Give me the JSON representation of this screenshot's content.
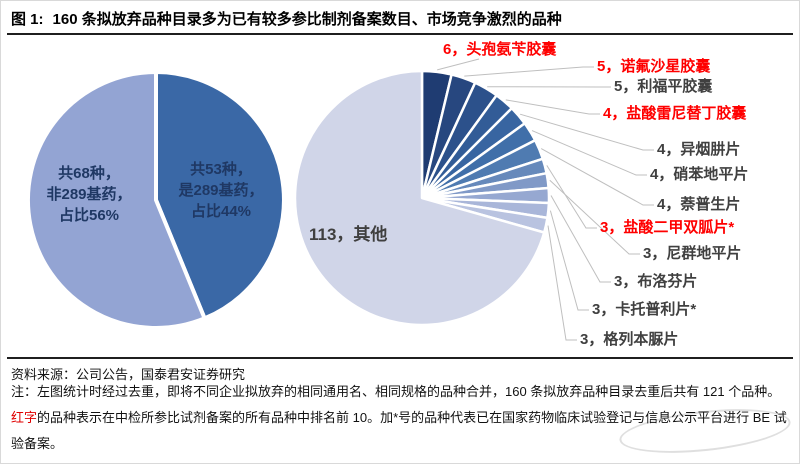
{
  "header": {
    "figure_label": "图 1:",
    "title": "160 条拟放弃品种目录多为已有较多参比制剂备案数目、市场竞争激烈的品种"
  },
  "footer": {
    "source": "资料来源：公司公告，国泰君安证券研究",
    "note_part1": "注：左图统计时经过去重，即将不同企业拟放弃的相同通用名、相同规格的品种合并，160 条拟放弃品种目录去重后共有 121 个品种。",
    "note_red": "红字",
    "note_part2": "的品种表示在中检所参比试剂备案的所有品种中排名前 10。加*号的品种代表已在国家药物临床试验登记与信息公示平台进行 BE 试验备案。"
  },
  "palette": {
    "red_label": "#ff0000",
    "normal_label": "#404040",
    "leader_line": "#bfbfbf",
    "pie_label_navy": "#1f3864",
    "divider": "#1f1f1f"
  },
  "chart_data": [
    {
      "type": "pie",
      "position": "left",
      "total": 121,
      "slices": [
        {
          "value": 53,
          "label": "共53种，\n是289基药，\n占比44%",
          "color": "#3a68a6"
        },
        {
          "value": 68,
          "label": "共68种，\n非289基药，\n占比56%",
          "color": "#93a4d3"
        }
      ]
    },
    {
      "type": "pie",
      "position": "right",
      "total": 160,
      "slices": [
        {
          "value": 6,
          "name": "头孢氨苄胶囊",
          "display": "6，头孢氨苄胶囊",
          "red": true,
          "color": "#1f3c72"
        },
        {
          "value": 5,
          "name": "诺氟沙星胶囊",
          "display": "5，诺氟沙星胶囊",
          "red": true,
          "color": "#27477f"
        },
        {
          "value": 5,
          "name": "利福平胶囊",
          "display": "5，利福平胶囊",
          "red": false,
          "color": "#2c518b"
        },
        {
          "value": 4,
          "name": "盐酸雷尼替丁胶囊",
          "display": "4，盐酸雷尼替丁胶囊",
          "red": true,
          "color": "#325c97"
        },
        {
          "value": 4,
          "name": "异烟肼片",
          "display": "4，异烟肼片",
          "red": false,
          "color": "#3865a1"
        },
        {
          "value": 4,
          "name": "硝苯地平片",
          "display": "4，硝苯地平片",
          "red": false,
          "color": "#406fa9"
        },
        {
          "value": 4,
          "name": "萘普生片",
          "display": "4，萘普生片",
          "red": false,
          "color": "#4f7bb1"
        },
        {
          "value": 3,
          "name": "盐酸二甲双胍片*",
          "display": "3，盐酸二甲双胍片*",
          "red": true,
          "color": "#6689bb"
        },
        {
          "value": 3,
          "name": "尼群地平片",
          "display": "3，尼群地平片",
          "red": false,
          "color": "#8099c7"
        },
        {
          "value": 3,
          "name": "布洛芬片",
          "display": "3，布洛芬片",
          "red": false,
          "color": "#96a8d1"
        },
        {
          "value": 3,
          "name": "卡托普利片*",
          "display": "3，卡托普利片*",
          "red": false,
          "color": "#a9b6d9"
        },
        {
          "value": 3,
          "name": "格列本脲片",
          "display": "3，格列本脲片",
          "red": false,
          "color": "#b9c3e0"
        },
        {
          "value": 113,
          "name": "其他",
          "display": "113，其他",
          "red": false,
          "color": "#d0d5e8"
        }
      ]
    }
  ]
}
